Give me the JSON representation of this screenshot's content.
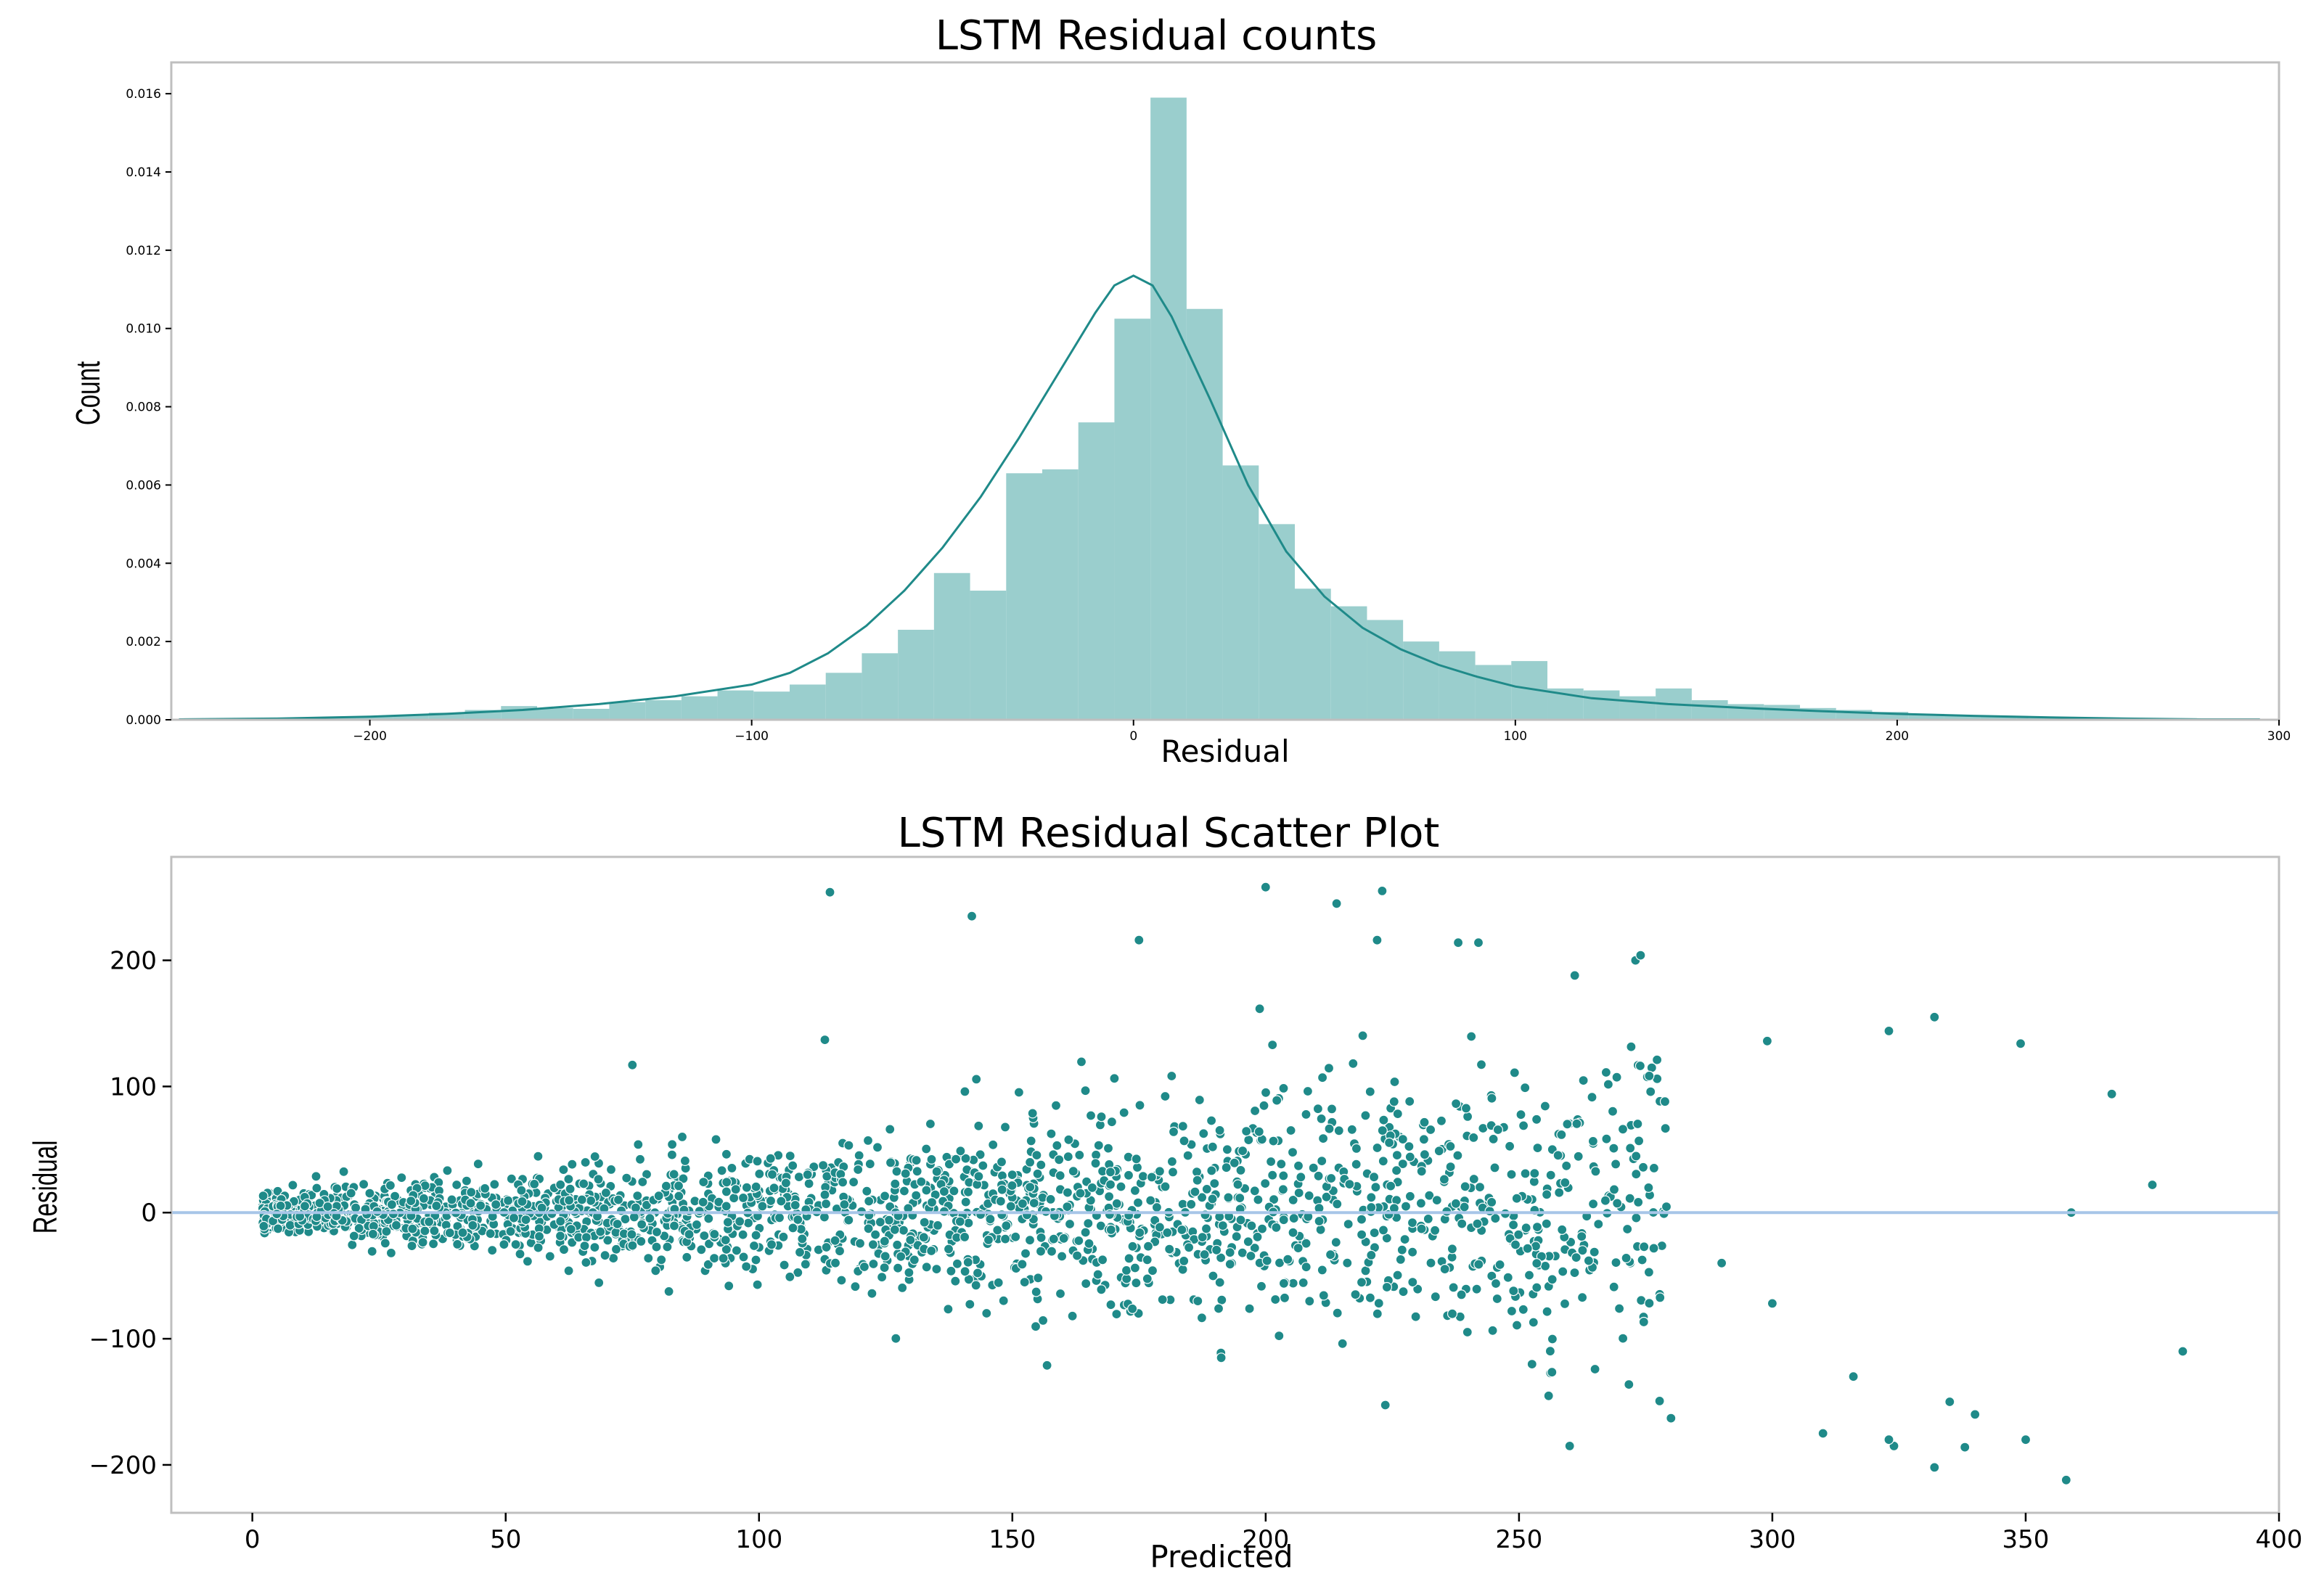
{
  "chart_data": [
    {
      "type": "bar",
      "title": "LSTM Residual counts",
      "xlabel": "Residual",
      "ylabel": "Count",
      "xlim": [
        -252,
        300
      ],
      "ylim": [
        0,
        0.0168
      ],
      "xticks": [
        -200,
        -100,
        0,
        100,
        200,
        300
      ],
      "xtick_labels": [
        "−200",
        "−100",
        "0",
        "100",
        "200",
        "300"
      ],
      "yticks": [
        0,
        0.002,
        0.004,
        0.006,
        0.008,
        0.01,
        0.012,
        0.014,
        0.016
      ],
      "ytick_labels": [
        "0.000",
        "0.002",
        "0.004",
        "0.006",
        "0.008",
        "0.010",
        "0.012",
        "0.014",
        "0.016"
      ],
      "bar_color": "#9acecd",
      "kde_color": "#1f8a89",
      "bins_start": -250.7,
      "bin_width": 9.45,
      "values": [
        0,
        0,
        4e-05,
        0,
        6e-05,
        8e-05,
        0.00012,
        0.00018,
        0.00025,
        0.00035,
        0.0003,
        0.00028,
        0.00045,
        0.0005,
        0.0006,
        0.00075,
        0.00072,
        0.0009,
        0.0012,
        0.0017,
        0.0023,
        0.00375,
        0.0033,
        0.0063,
        0.0064,
        0.0076,
        0.01025,
        0.0159,
        0.0105,
        0.0065,
        0.005,
        0.00335,
        0.0029,
        0.00255,
        0.002,
        0.00175,
        0.0014,
        0.0015,
        0.0008,
        0.00075,
        0.0006,
        0.0008,
        0.0005,
        0.0004,
        0.00038,
        0.0003,
        0.00025,
        0.0002,
        0.00015,
        0.00012,
        0.0001,
        8e-05,
        5e-05,
        4e-05,
        3e-05,
        4e-05,
        2e-05,
        1e-05
      ],
      "kde": {
        "x": [
          -250,
          -225,
          -200,
          -180,
          -160,
          -140,
          -120,
          -100,
          -90,
          -80,
          -70,
          -60,
          -50,
          -40,
          -30,
          -20,
          -10,
          -5,
          0,
          5,
          10,
          20,
          30,
          40,
          50,
          60,
          70,
          80,
          90,
          100,
          120,
          140,
          160,
          180,
          200,
          220,
          240,
          260,
          280,
          295
        ],
        "y": [
          1e-05,
          3e-05,
          8e-05,
          0.00015,
          0.00025,
          0.0004,
          0.0006,
          0.0009,
          0.0012,
          0.0017,
          0.0024,
          0.0033,
          0.0044,
          0.0057,
          0.0072,
          0.0088,
          0.0104,
          0.0111,
          0.01135,
          0.0111,
          0.0103,
          0.0082,
          0.006,
          0.0043,
          0.00315,
          0.00235,
          0.0018,
          0.0014,
          0.0011,
          0.00085,
          0.00055,
          0.0004,
          0.0003,
          0.00022,
          0.00015,
          0.0001,
          6e-05,
          3e-05,
          1e-05,
          1e-05
        ]
      }
    },
    {
      "type": "scatter",
      "title": "LSTM Residual Scatter Plot",
      "xlabel": "Predicted",
      "ylabel": "Residual",
      "xlim": [
        -16,
        400
      ],
      "ylim": [
        -238,
        282
      ],
      "xticks": [
        0,
        50,
        100,
        150,
        200,
        250,
        300,
        350,
        400
      ],
      "xtick_labels": [
        "0",
        "50",
        "100",
        "150",
        "200",
        "250",
        "300",
        "350",
        "400"
      ],
      "yticks": [
        -200,
        -100,
        0,
        100,
        200
      ],
      "ytick_labels": [
        "−200",
        "−100",
        "0",
        "100",
        "200"
      ],
      "point_color": "#1f8a89",
      "reference_line": {
        "y": 0,
        "color": "#a7c6e8"
      },
      "notable_points": [
        [
          114,
          254
        ],
        [
          142,
          235
        ],
        [
          200,
          258
        ],
        [
          214,
          245
        ],
        [
          223,
          255
        ],
        [
          175,
          216
        ],
        [
          222,
          216
        ],
        [
          238,
          214
        ],
        [
          242,
          214
        ],
        [
          273,
          200
        ],
        [
          274,
          204
        ],
        [
          261,
          188
        ],
        [
          75,
          117
        ],
        [
          113,
          137
        ],
        [
          299,
          136
        ],
        [
          323,
          144
        ],
        [
          332,
          155
        ],
        [
          349,
          134
        ],
        [
          367,
          94
        ],
        [
          375,
          22
        ],
        [
          359,
          0
        ],
        [
          381,
          -110
        ],
        [
          358,
          -212
        ],
        [
          332,
          -202
        ],
        [
          338,
          -186
        ],
        [
          350,
          -180
        ],
        [
          310,
          -175
        ],
        [
          260,
          -185
        ],
        [
          324,
          -185
        ],
        [
          280,
          -163
        ],
        [
          316,
          -130
        ],
        [
          300,
          -72
        ],
        [
          290,
          -40
        ],
        [
          323,
          -180
        ],
        [
          340,
          -160
        ],
        [
          335,
          -150
        ]
      ],
      "cloud": {
        "count": 2050,
        "x_skew": 1.2,
        "x_max": 280,
        "spread_base": 6,
        "spread_slope": 0.2,
        "clip": 165,
        "seed": 7
      }
    }
  ]
}
